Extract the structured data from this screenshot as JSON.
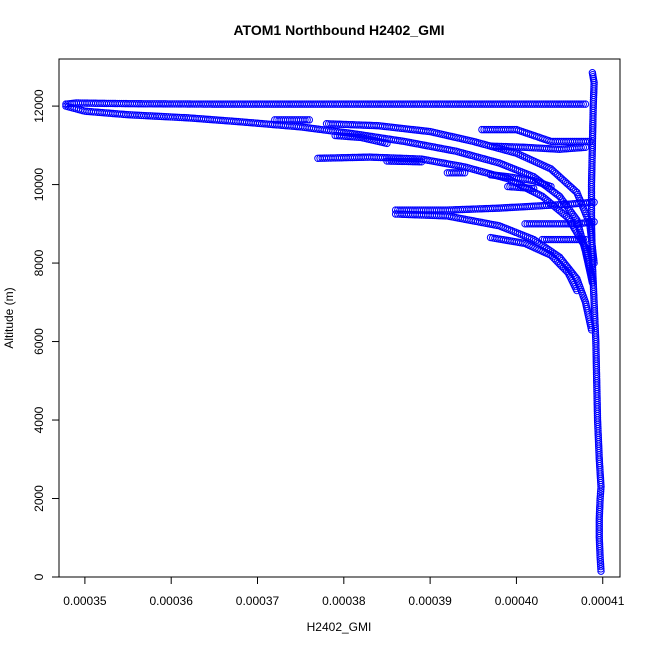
{
  "chart_data": {
    "type": "scatter",
    "title": "ATOM1 Northbound H2402_GMI",
    "xlabel": "H2402_GMI",
    "ylabel": "Altitude (m)",
    "xlim": [
      0.000347,
      0.000412
    ],
    "ylim": [
      0,
      13200
    ],
    "x_ticks": [
      "0.00035",
      "0.00036",
      "0.00037",
      "0.00038",
      "0.00039",
      "0.00040",
      "0.00041"
    ],
    "x_tick_values": [
      0.00035,
      0.00036,
      0.00037,
      0.00038,
      0.00039,
      0.0004,
      0.00041
    ],
    "y_ticks": [
      "0",
      "2000",
      "4000",
      "6000",
      "8000",
      "10000",
      "12000"
    ],
    "y_tick_values": [
      0,
      2000,
      4000,
      6000,
      8000,
      10000,
      12000
    ],
    "marker": "open-circle",
    "color": "#0000ff",
    "grid": false,
    "legend": "none",
    "series": [
      {
        "values": [
          [
            0.0004098,
            150
          ],
          [
            0.0004097,
            500
          ],
          [
            0.0004096,
            1000
          ],
          [
            0.0004096,
            1500
          ],
          [
            0.0004097,
            2000
          ],
          [
            0.0004098,
            2300
          ],
          [
            0.0004096,
            3000
          ],
          [
            0.0004094,
            4000
          ],
          [
            0.0004093,
            5000
          ],
          [
            0.0004092,
            6000
          ],
          [
            0.000409,
            7000
          ],
          [
            0.0004088,
            8000
          ],
          [
            0.0004087,
            9000
          ],
          [
            0.0004087,
            10000
          ],
          [
            0.0004088,
            11000
          ],
          [
            0.0004089,
            12000
          ],
          [
            0.000409,
            12600
          ],
          [
            0.0004088,
            12850
          ]
        ]
      },
      {
        "values": [
          [
            0.000408,
            12050
          ],
          [
            0.000395,
            12050
          ],
          [
            0.00038,
            12050
          ],
          [
            0.000365,
            12050
          ],
          [
            0.000356,
            12060
          ],
          [
            0.000352,
            12070
          ],
          [
            0.000349,
            12080
          ],
          [
            0.0003478,
            12050
          ]
        ]
      },
      {
        "values": [
          [
            0.0003478,
            12000
          ],
          [
            0.00035,
            11870
          ],
          [
            0.000355,
            11780
          ],
          [
            0.000362,
            11700
          ],
          [
            0.000368,
            11600
          ],
          [
            0.000375,
            11470
          ],
          [
            0.000381,
            11300
          ],
          [
            0.000387,
            11100
          ],
          [
            0.000393,
            10850
          ],
          [
            0.000398,
            10550
          ],
          [
            0.000402,
            10200
          ],
          [
            0.000405,
            9700
          ],
          [
            0.000407,
            9100
          ],
          [
            0.000408,
            8300
          ],
          [
            0.0004088,
            7500
          ]
        ]
      },
      {
        "values": [
          [
            0.000377,
            10670
          ],
          [
            0.000383,
            10700
          ],
          [
            0.000389,
            10650
          ],
          [
            0.000394,
            10450
          ],
          [
            0.000399,
            10150
          ],
          [
            0.000403,
            9700
          ],
          [
            0.000406,
            9150
          ],
          [
            0.000408,
            8400
          ],
          [
            0.0004088,
            7600
          ]
        ]
      },
      {
        "values": [
          [
            0.000378,
            11550
          ],
          [
            0.000384,
            11500
          ],
          [
            0.00039,
            11350
          ],
          [
            0.000395,
            11100
          ],
          [
            0.0004,
            10800
          ],
          [
            0.000404,
            10400
          ],
          [
            0.000407,
            9800
          ],
          [
            0.0004085,
            9000
          ],
          [
            0.000409,
            8000
          ]
        ]
      },
      {
        "values": [
          [
            0.000386,
            9350
          ],
          [
            0.000392,
            9350
          ],
          [
            0.000398,
            9400
          ],
          [
            0.000402,
            9450
          ],
          [
            0.000406,
            9500
          ],
          [
            0.000409,
            9550
          ]
        ]
      },
      {
        "values": [
          [
            0.000386,
            9250
          ],
          [
            0.000392,
            9200
          ],
          [
            0.000398,
            8950
          ],
          [
            0.000402,
            8600
          ],
          [
            0.000405,
            8150
          ],
          [
            0.000407,
            7600
          ],
          [
            0.000408,
            7000
          ],
          [
            0.0004087,
            6300
          ]
        ]
      },
      {
        "values": [
          [
            0.000397,
            8650
          ],
          [
            0.000401,
            8500
          ],
          [
            0.000404,
            8200
          ],
          [
            0.000406,
            7750
          ],
          [
            0.000407,
            7300
          ]
        ]
      },
      {
        "values": [
          [
            0.000396,
            11400
          ],
          [
            0.0004,
            11400
          ],
          [
            0.000404,
            11100
          ],
          [
            0.000407,
            11100
          ],
          [
            0.0004085,
            11100
          ]
        ]
      },
      {
        "values": [
          [
            0.000397,
            10980
          ],
          [
            0.000401,
            10950
          ],
          [
            0.000405,
            10900
          ],
          [
            0.000408,
            10950
          ]
        ]
      },
      {
        "values": [
          [
            0.000372,
            11650
          ],
          [
            0.000376,
            11650
          ]
        ]
      },
      {
        "values": [
          [
            0.000385,
            10600
          ],
          [
            0.000389,
            10580
          ]
        ]
      },
      {
        "values": [
          [
            0.000392,
            10300
          ],
          [
            0.000394,
            10300
          ]
        ]
      },
      {
        "values": [
          [
            0.000397,
            10250
          ],
          [
            0.000399,
            10200
          ],
          [
            0.000402,
            10100
          ],
          [
            0.000404,
            9950
          ]
        ]
      },
      {
        "values": [
          [
            0.000399,
            9950
          ],
          [
            0.000402,
            9900
          ]
        ]
      },
      {
        "values": [
          [
            0.000401,
            9000
          ],
          [
            0.000404,
            9000
          ],
          [
            0.000407,
            9000
          ],
          [
            0.000409,
            9050
          ]
        ]
      },
      {
        "values": [
          [
            0.000403,
            8600
          ],
          [
            0.000406,
            8600
          ],
          [
            0.000408,
            8600
          ]
        ]
      },
      {
        "values": [
          [
            0.000379,
            11250
          ],
          [
            0.000382,
            11200
          ],
          [
            0.000385,
            11050
          ]
        ]
      }
    ]
  }
}
